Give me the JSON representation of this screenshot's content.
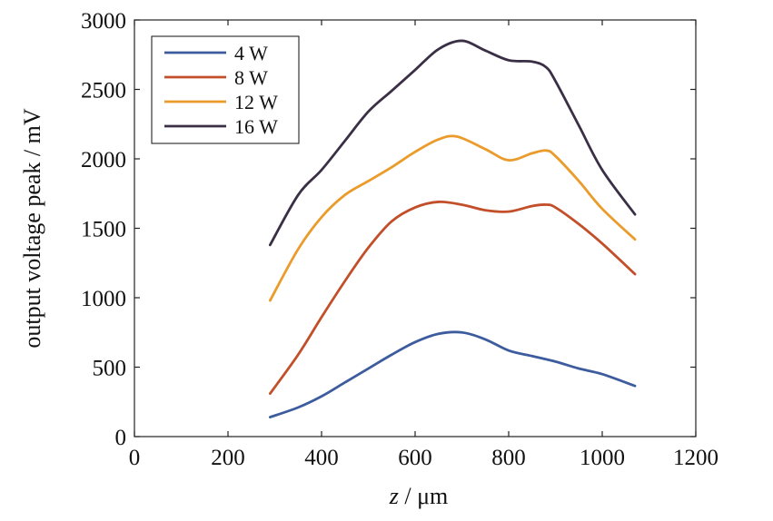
{
  "chart_data": {
    "type": "line",
    "title": "",
    "xlabel": {
      "italic": "z",
      "rest": " / μm"
    },
    "ylabel": "output voltage peak / mV",
    "xlim": [
      0,
      1200
    ],
    "ylim": [
      0,
      3000
    ],
    "xticks": [
      0,
      200,
      400,
      600,
      800,
      1000,
      1200
    ],
    "yticks": [
      0,
      500,
      1000,
      1500,
      2000,
      2500,
      3000
    ],
    "grid": false,
    "legend_position": "top-left",
    "series": [
      {
        "name": "4 W",
        "color": "#3d5c9e",
        "points": [
          [
            290,
            140
          ],
          [
            350,
            210
          ],
          [
            400,
            290
          ],
          [
            450,
            390
          ],
          [
            500,
            490
          ],
          [
            550,
            590
          ],
          [
            600,
            680
          ],
          [
            650,
            740
          ],
          [
            700,
            750
          ],
          [
            750,
            700
          ],
          [
            800,
            620
          ],
          [
            850,
            580
          ],
          [
            900,
            540
          ],
          [
            950,
            490
          ],
          [
            1000,
            450
          ],
          [
            1070,
            365
          ]
        ]
      },
      {
        "name": "8 W",
        "color": "#c24f2a",
        "points": [
          [
            290,
            310
          ],
          [
            350,
            590
          ],
          [
            400,
            860
          ],
          [
            450,
            1120
          ],
          [
            500,
            1360
          ],
          [
            550,
            1550
          ],
          [
            600,
            1650
          ],
          [
            650,
            1690
          ],
          [
            700,
            1670
          ],
          [
            750,
            1630
          ],
          [
            800,
            1620
          ],
          [
            850,
            1660
          ],
          [
            880,
            1670
          ],
          [
            900,
            1650
          ],
          [
            950,
            1530
          ],
          [
            1000,
            1390
          ],
          [
            1070,
            1170
          ]
        ]
      },
      {
        "name": "12 W",
        "color": "#eb9b2a",
        "points": [
          [
            290,
            980
          ],
          [
            350,
            1350
          ],
          [
            400,
            1580
          ],
          [
            450,
            1740
          ],
          [
            500,
            1840
          ],
          [
            550,
            1940
          ],
          [
            600,
            2050
          ],
          [
            650,
            2140
          ],
          [
            690,
            2160
          ],
          [
            750,
            2070
          ],
          [
            800,
            1990
          ],
          [
            850,
            2040
          ],
          [
            880,
            2060
          ],
          [
            900,
            2020
          ],
          [
            950,
            1840
          ],
          [
            1000,
            1640
          ],
          [
            1070,
            1420
          ]
        ]
      },
      {
        "name": "16 W",
        "color": "#3a2f45",
        "points": [
          [
            290,
            1380
          ],
          [
            350,
            1740
          ],
          [
            400,
            1920
          ],
          [
            450,
            2130
          ],
          [
            500,
            2340
          ],
          [
            550,
            2490
          ],
          [
            600,
            2640
          ],
          [
            650,
            2790
          ],
          [
            700,
            2850
          ],
          [
            750,
            2780
          ],
          [
            800,
            2710
          ],
          [
            850,
            2700
          ],
          [
            880,
            2660
          ],
          [
            900,
            2560
          ],
          [
            950,
            2240
          ],
          [
            1000,
            1920
          ],
          [
            1070,
            1600
          ]
        ]
      }
    ]
  }
}
